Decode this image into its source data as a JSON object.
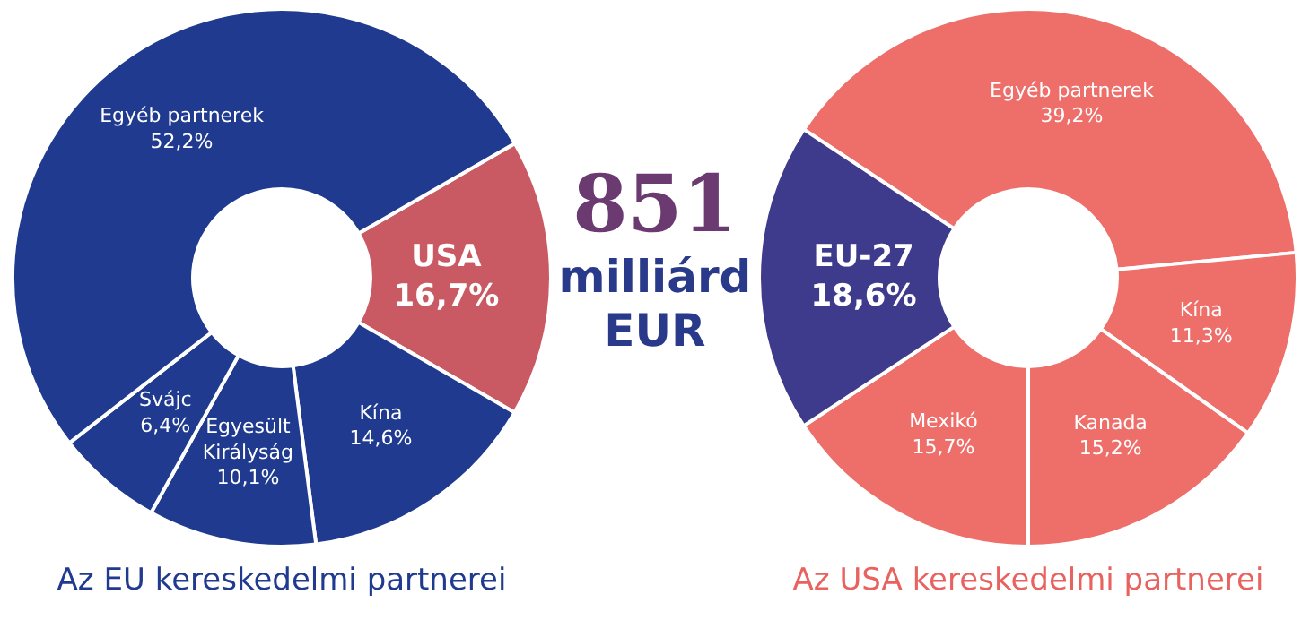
{
  "chart_data": [
    {
      "type": "donut",
      "title": "Az EU kereskedelmi partnerei",
      "categories": [
        "USA",
        "Kína",
        "Egyesült Királyság",
        "Svájc",
        "Egyéb partnerek"
      ],
      "values": [
        16.7,
        14.6,
        10.1,
        6.4,
        52.2
      ],
      "colors": [
        "#c95a64",
        "#1f3a8f",
        "#1f3a8f",
        "#1f3a8f",
        "#1f3a8f"
      ],
      "value_labels": [
        "16,7%",
        "14,6%",
        "10,1%",
        "6,4%",
        "52,2%"
      ]
    },
    {
      "type": "other",
      "title": "851",
      "subtitle": "milliárd EUR"
    },
    {
      "type": "donut",
      "title": "Az USA kereskedelmi partnerei",
      "categories": [
        "Egyéb partnerek",
        "Kína",
        "Kanada",
        "Mexikó",
        "EU-27"
      ],
      "values": [
        39.2,
        11.3,
        15.2,
        15.7,
        18.6
      ],
      "colors": [
        "#ee6e69",
        "#ee6e69",
        "#ee6e69",
        "#ee6e69",
        "#3f3b8c"
      ],
      "value_labels": [
        "39,2%",
        "11,3%",
        "15,2%",
        "15,7%",
        "18,6%"
      ]
    }
  ]
}
